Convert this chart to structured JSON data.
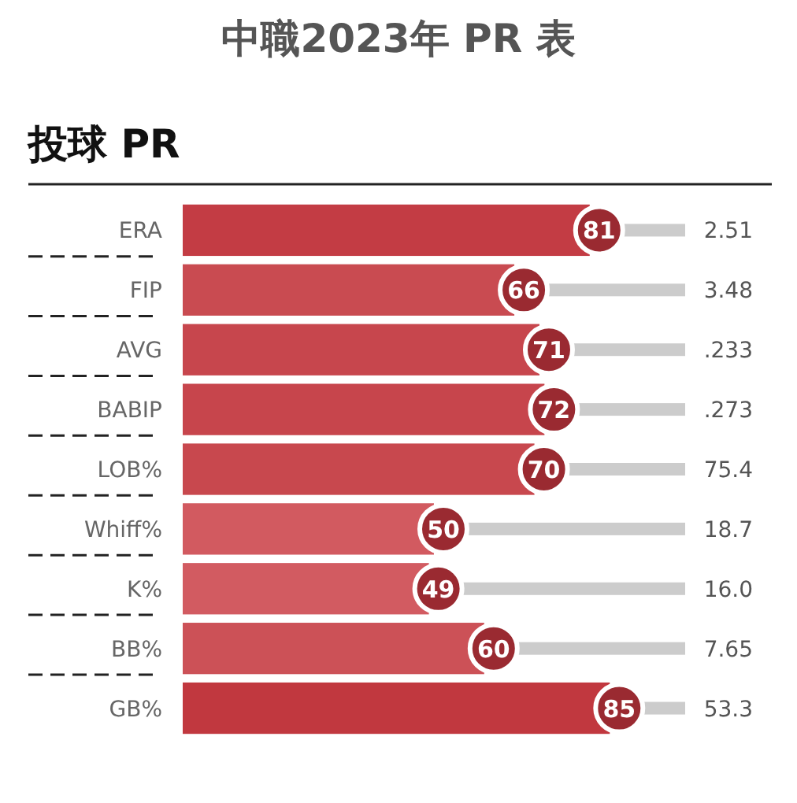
{
  "chart_data": {
    "type": "bar",
    "orientation": "horizontal",
    "stacked": true,
    "title": "中職2023年 PR 表",
    "subtitle": "投球 PR",
    "categories": [
      "ERA",
      "FIP",
      "AVG",
      "BABIP",
      "LOB%",
      "Whiff%",
      "K%",
      "BB%",
      "GB%"
    ],
    "series": [
      {
        "values": [
          81,
          66,
          71,
          72,
          70,
          50,
          49,
          60,
          85
        ],
        "value_labels": [
          "81",
          "66",
          "71",
          "72",
          "70",
          "50",
          "49",
          "60",
          "85"
        ],
        "colors": [
          "#c33c44",
          "#c94b51",
          "#c7464d",
          "#c7454c",
          "#c8484e",
          "#d25a60",
          "#d25b61",
          "#cc5157",
          "#c1383f"
        ]
      },
      {
        "values": [
          19,
          34,
          29,
          28,
          30,
          50,
          51,
          40,
          15
        ],
        "color": "#cccccc"
      }
    ],
    "xlim": [
      0,
      100
    ],
    "tick_labels": "y",
    "annotations": [
      "2.51",
      "3.48",
      ".233",
      ".273",
      "75.4",
      "18.7",
      "16.0",
      "7.65",
      "53.3"
    ]
  }
}
